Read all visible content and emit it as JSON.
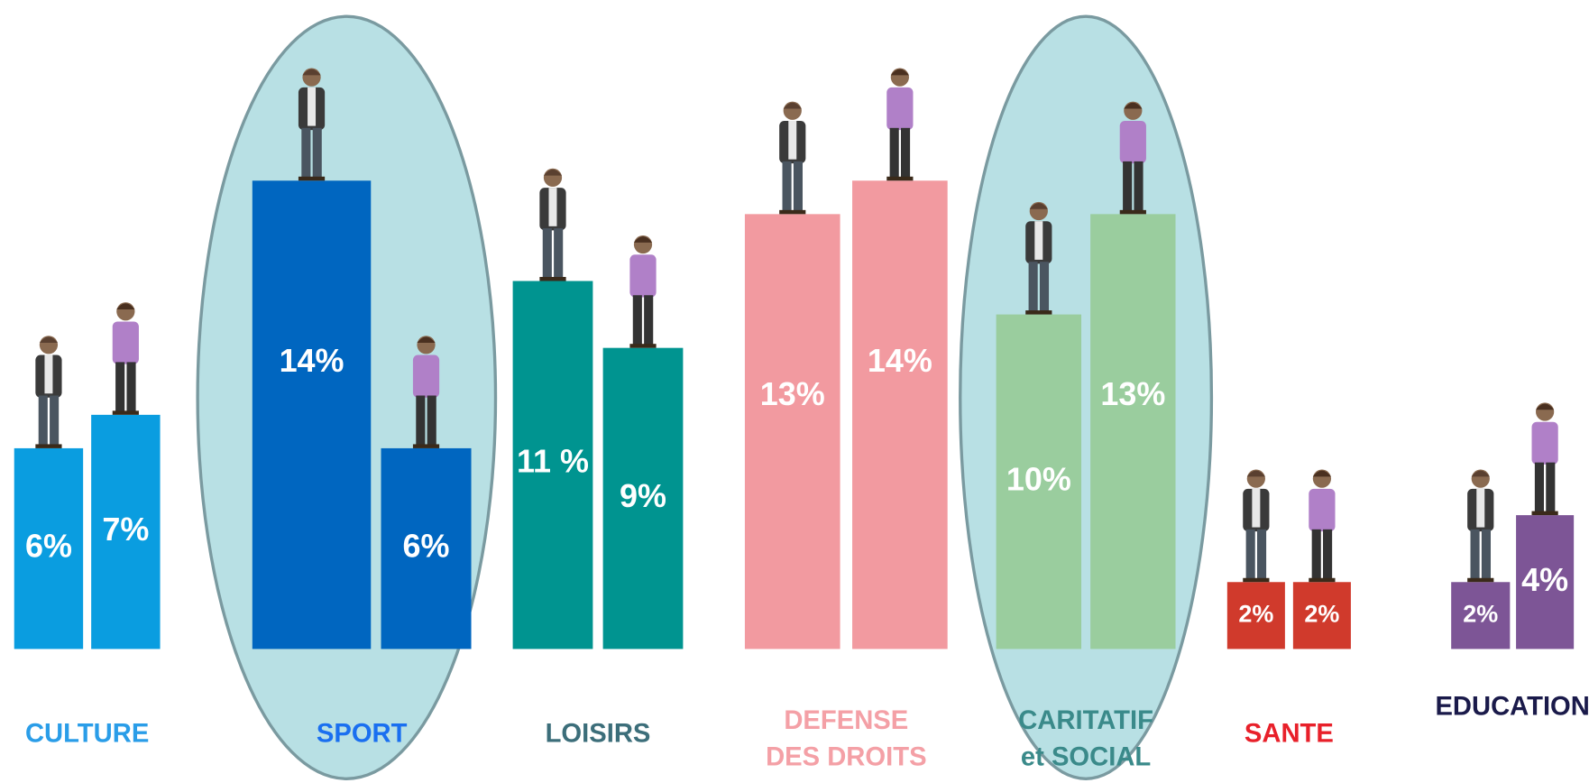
{
  "chart_data": {
    "type": "bar",
    "groups": [
      {
        "label": [
          "CULTURE"
        ],
        "color": "#0a9de0",
        "label_color": "#2a9de8",
        "highlight": false,
        "values": [
          6,
          7
        ],
        "value_labels": [
          "6%",
          "7%"
        ]
      },
      {
        "label": [
          "SPORT"
        ],
        "color": "#0066c0",
        "label_color": "#1a6ff0",
        "highlight": true,
        "values": [
          14,
          6
        ],
        "value_labels": [
          "14%",
          "6%"
        ]
      },
      {
        "label": [
          "LOISIRS"
        ],
        "color": "#009490",
        "label_color": "#3c6e7a",
        "highlight": false,
        "values": [
          11,
          9
        ],
        "value_labels": [
          "11 %",
          "9%"
        ]
      },
      {
        "label": [
          "DEFENSE",
          "DES DROITS"
        ],
        "color": "#f29aa0",
        "label_color": "#f4a0a6",
        "highlight": false,
        "values": [
          13,
          14
        ],
        "value_labels": [
          "13%",
          "14%"
        ]
      },
      {
        "label": [
          "CARITATIF",
          "et SOCIAL"
        ],
        "color": "#9acd9e",
        "label_color": "#3a8a8a",
        "highlight": true,
        "values": [
          10,
          13
        ],
        "value_labels": [
          "10%",
          "13%"
        ]
      },
      {
        "label": [
          "SANTE"
        ],
        "color": "#d03a2c",
        "label_color": "#e8202a",
        "highlight": false,
        "values": [
          2,
          2
        ],
        "value_labels": [
          "2%",
          "2%"
        ]
      },
      {
        "label": [
          "EDUCATION"
        ],
        "color": "#7d5596",
        "label_color": "#1a1a4a",
        "highlight": false,
        "values": [
          2,
          4
        ],
        "value_labels": [
          "2%",
          "4%"
        ]
      }
    ]
  }
}
